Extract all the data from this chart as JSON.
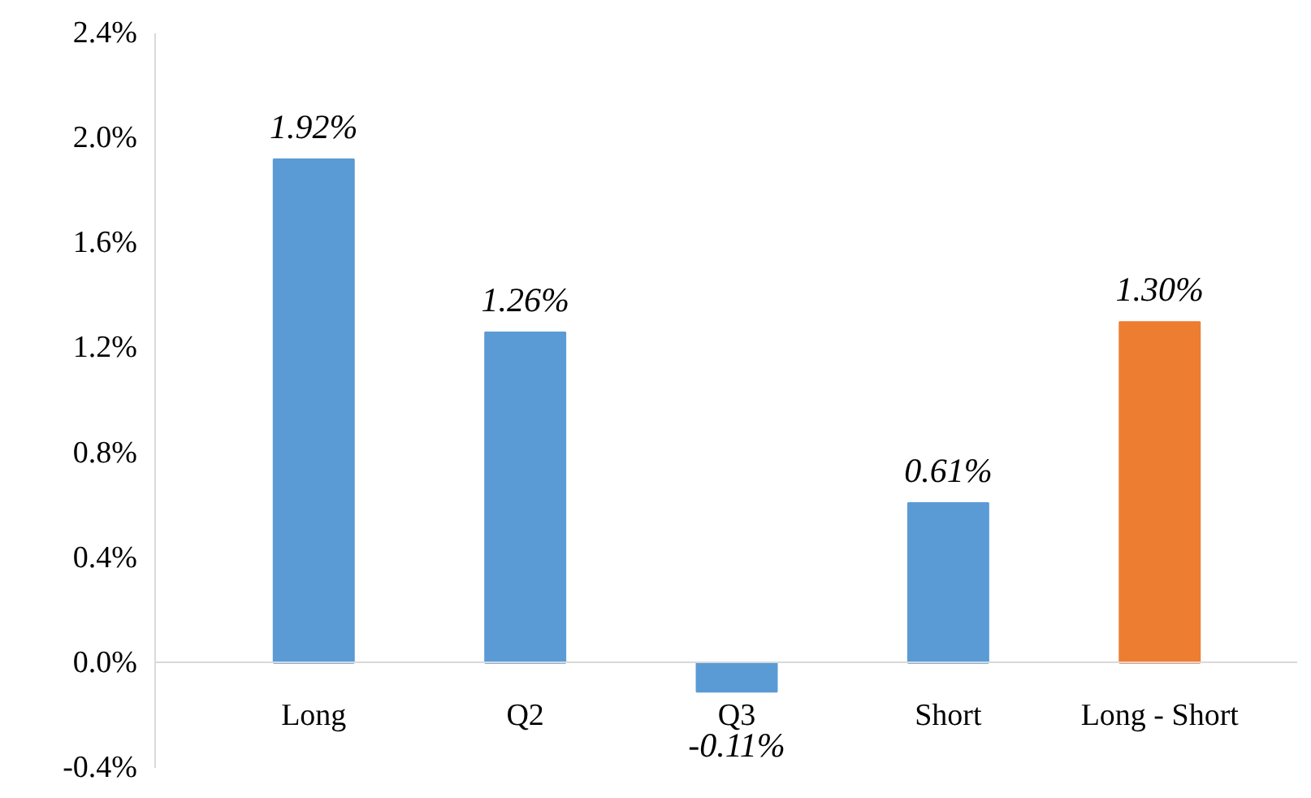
{
  "chart_data": {
    "type": "bar",
    "categories": [
      "Long",
      "Q2",
      "Q3",
      "Short",
      "Long - Short"
    ],
    "values": [
      1.92,
      1.26,
      -0.11,
      0.61,
      1.3
    ],
    "colors": [
      "#5b9bd5",
      "#5b9bd5",
      "#5b9bd5",
      "#5b9bd5",
      "#ed7d31"
    ],
    "value_labels": [
      "1.92%",
      "1.26%",
      "-0.11%",
      "0.61%",
      "1.30%"
    ],
    "ylim": [
      -0.4,
      2.4
    ],
    "yticks": [
      {
        "value": -0.4,
        "label": "-0.4%"
      },
      {
        "value": 0,
        "label": "0.0%"
      },
      {
        "value": 0.4,
        "label": "0.4%"
      },
      {
        "value": 0.8,
        "label": "0.8%"
      },
      {
        "value": 1.2,
        "label": "1.2%"
      },
      {
        "value": 1.6,
        "label": "1.6%"
      },
      {
        "value": 2.0,
        "label": "2.0%"
      },
      {
        "value": 2.4,
        "label": "2.4%"
      }
    ],
    "grid": false
  }
}
